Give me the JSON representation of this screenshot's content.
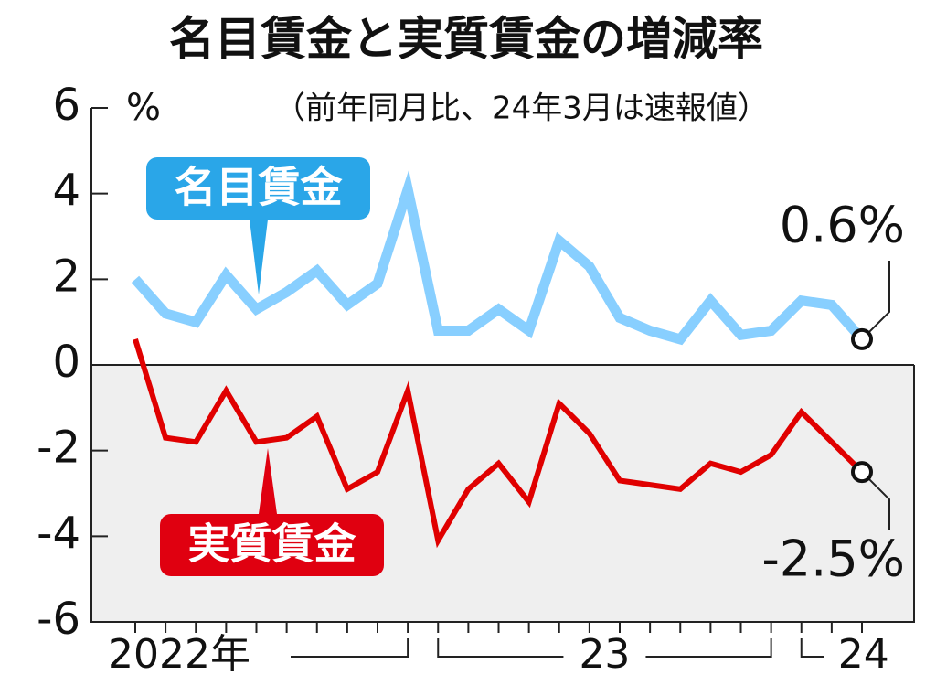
{
  "chart_data": {
    "type": "line",
    "title": "名目賃金と実質賃金の増減率",
    "subtitle": "（前年同月比、24年3月は速報値）",
    "y_unit": "%",
    "categories": [
      "2022年",
      null,
      null,
      null,
      null,
      null,
      null,
      null,
      null,
      null,
      "23",
      null,
      null,
      null,
      null,
      null,
      null,
      null,
      null,
      null,
      null,
      null,
      "24",
      null,
      null
    ],
    "series": [
      {
        "name": "名目賃金",
        "color": "#88cfff",
        "label_color": "#2aa6e8",
        "values": [
          2.0,
          1.2,
          1.0,
          2.1,
          1.3,
          1.7,
          2.2,
          1.4,
          1.9,
          4.1,
          0.8,
          0.8,
          1.3,
          0.8,
          2.9,
          2.3,
          1.1,
          0.8,
          0.6,
          1.5,
          0.7,
          0.8,
          1.5,
          1.4,
          0.6
        ],
        "value_labels": [
          null,
          null,
          null,
          null,
          null,
          null,
          null,
          null,
          null,
          null,
          null,
          null,
          null,
          null,
          null,
          null,
          null,
          null,
          null,
          null,
          null,
          null,
          null,
          null,
          "0.6%"
        ]
      },
      {
        "name": "実質賃金",
        "color": "#e00000",
        "label_color": "#e00010",
        "values": [
          0.6,
          -1.7,
          -1.8,
          -0.6,
          -1.8,
          -1.7,
          -1.2,
          -2.9,
          -2.5,
          -0.6,
          -4.1,
          -2.9,
          -2.3,
          -3.2,
          -0.9,
          -1.6,
          -2.7,
          -2.8,
          -2.9,
          -2.3,
          -2.5,
          -2.1,
          -1.1,
          -1.8,
          -2.5
        ],
        "value_labels": [
          null,
          null,
          null,
          null,
          null,
          null,
          null,
          null,
          null,
          null,
          null,
          null,
          null,
          null,
          null,
          null,
          null,
          null,
          null,
          null,
          null,
          null,
          null,
          null,
          "-2.5%"
        ]
      }
    ],
    "ylim": [
      -6,
      6
    ],
    "yticks": [
      6,
      4,
      2,
      0,
      -2,
      -4,
      -6
    ],
    "negative_shade": "#efefef"
  }
}
